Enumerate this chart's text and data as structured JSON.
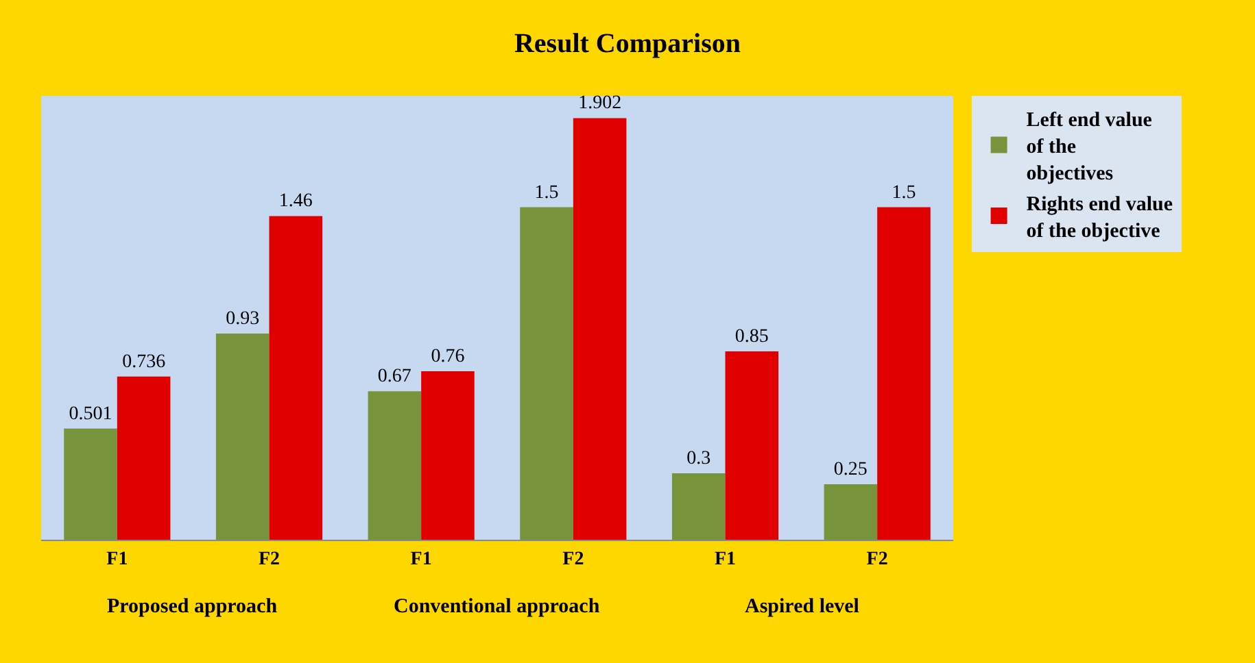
{
  "chart_data": {
    "type": "bar",
    "title": "Result Comparison",
    "categories": [
      "F1",
      "F2",
      "F1",
      "F2",
      "F1",
      "F2"
    ],
    "series": [
      {
        "name": "Left end value of the objectives",
        "color": "#77933c",
        "values": [
          0.501,
          0.93,
          0.67,
          1.5,
          0.3,
          0.25
        ]
      },
      {
        "name": "Rights end value of the objective",
        "color": "#e00000",
        "values": [
          0.736,
          1.46,
          0.76,
          1.902,
          0.85,
          1.5
        ]
      }
    ],
    "annotations": [
      "Proposed approach",
      "Conventional approach",
      "Aspired level"
    ],
    "data_labels": true,
    "tick_labels": "x",
    "grid": false,
    "legend": "right"
  }
}
